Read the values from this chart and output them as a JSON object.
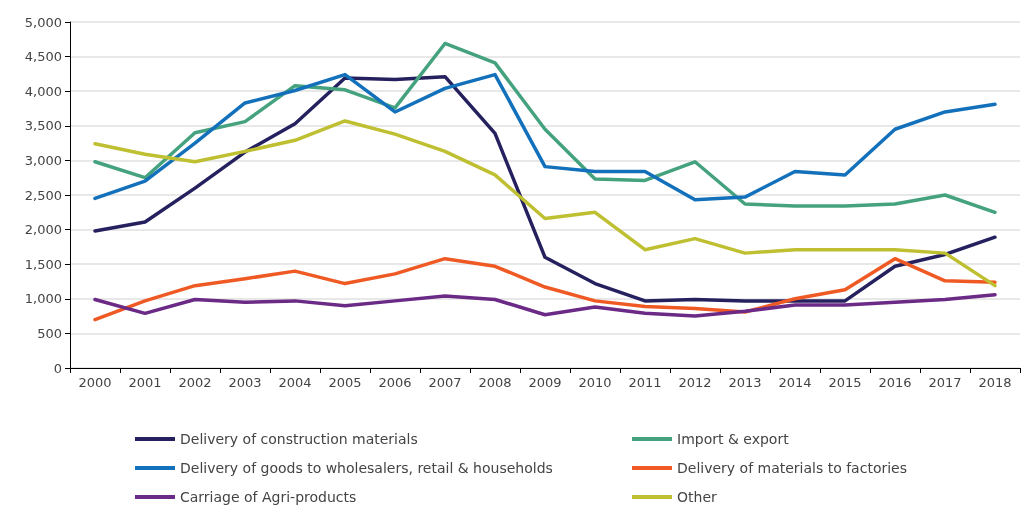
{
  "chart_data": {
    "type": "line",
    "categories": [
      "2000",
      "2001",
      "2002",
      "2003",
      "2004",
      "2005",
      "2006",
      "2007",
      "2008",
      "2009",
      "2010",
      "2011",
      "2012",
      "2013",
      "2014",
      "2015",
      "2016",
      "2017",
      "2018"
    ],
    "series": [
      {
        "name": "Delivery of construction materials",
        "color": "#25215f",
        "values": [
          1980,
          2110,
          2600,
          3120,
          3530,
          4190,
          4170,
          4210,
          3390,
          1600,
          1220,
          970,
          990,
          970,
          970,
          970,
          1470,
          1640,
          1890
        ]
      },
      {
        "name": "Import & export",
        "color": "#45a27e",
        "values": [
          2980,
          2750,
          3400,
          3560,
          4080,
          4020,
          3760,
          4690,
          4410,
          3450,
          2730,
          2710,
          2980,
          2370,
          2340,
          2340,
          2370,
          2500,
          2250
        ]
      },
      {
        "name": "Delivery of goods to wholesalers, retail & households",
        "color": "#1371bb",
        "values": [
          2450,
          2700,
          3250,
          3830,
          4010,
          4240,
          3700,
          4040,
          4240,
          2910,
          2840,
          2840,
          2430,
          2470,
          2840,
          2790,
          3450,
          3700,
          3810
        ]
      },
      {
        "name": "Delivery of materials to factories",
        "color": "#ef5a24",
        "values": [
          700,
          970,
          1190,
          1290,
          1400,
          1220,
          1360,
          1580,
          1470,
          1170,
          970,
          890,
          860,
          810,
          1000,
          1130,
          1580,
          1260,
          1240
        ]
      },
      {
        "name": "Carriage of Agri-products",
        "color": "#6b2a85",
        "values": [
          990,
          790,
          990,
          950,
          970,
          900,
          970,
          1040,
          990,
          770,
          880,
          790,
          750,
          820,
          910,
          910,
          950,
          990,
          1060
        ]
      },
      {
        "name": "Other",
        "color": "#bfbf32",
        "values": [
          3240,
          3090,
          2980,
          3130,
          3290,
          3570,
          3380,
          3130,
          2790,
          2160,
          2250,
          1710,
          1870,
          1660,
          1710,
          1710,
          1710,
          1660,
          1190
        ]
      }
    ],
    "ylim": [
      0,
      5000
    ],
    "yticks": [
      0,
      500,
      {
        "value": 1000,
        "label": "1,000"
      },
      {
        "value": 1500,
        "label": "1,500"
      },
      {
        "value": 2000,
        "label": "2,000"
      },
      {
        "value": 2500,
        "label": "2,500"
      },
      {
        "value": 3000,
        "label": "3,000"
      },
      {
        "value": 3500,
        "label": "3,500"
      },
      {
        "value": 4000,
        "label": "4,000"
      },
      {
        "value": 4500,
        "label": "4,500"
      },
      {
        "value": 5000,
        "label": "5,000"
      }
    ],
    "grid": "y",
    "legend": "bottom",
    "marker": "none",
    "line_style": "solid"
  }
}
